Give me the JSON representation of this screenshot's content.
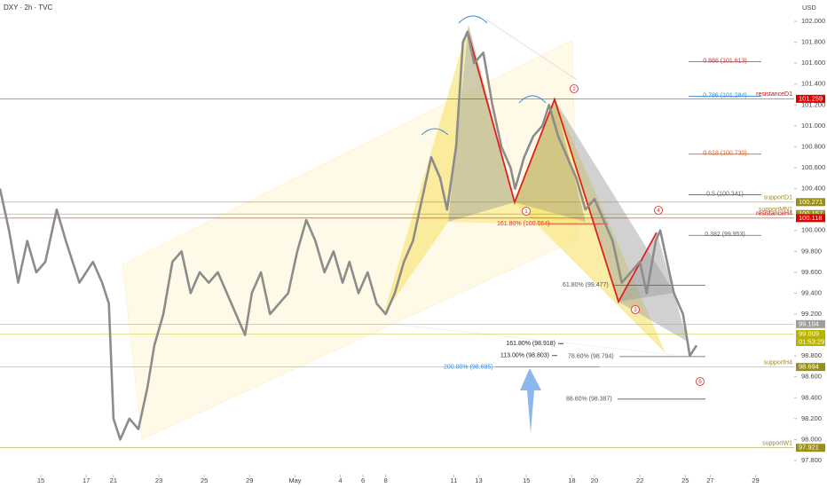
{
  "chart_data": {
    "type": "line",
    "title": "DXY · 2h · TVC",
    "y_axis_label": "USD",
    "color": "#8c8c8c",
    "xlim": [
      0,
      35
    ],
    "ylim": [
      97.664,
      102.204
    ],
    "x": [
      0,
      0.4,
      0.8,
      1.2,
      1.6,
      2.0,
      2.5,
      2.9,
      3.5,
      4.1,
      4.5,
      4.8,
      5.0,
      5.3,
      5.7,
      6.1,
      6.5,
      6.8,
      7.2,
      7.6,
      8.0,
      8.4,
      8.8,
      9.2,
      9.6,
      10.0,
      10.4,
      10.8,
      11.1,
      11.5,
      11.9,
      12.3,
      12.7,
      13.1,
      13.5,
      13.9,
      14.3,
      14.7,
      15.1,
      15.4,
      15.8,
      16.2,
      16.6,
      17.0,
      17.4,
      17.8,
      18.2,
      18.6,
      19.0,
      19.4,
      19.7,
      20.1,
      20.4,
      20.6,
      20.9,
      21.3,
      21.7,
      22.1,
      22.5,
      22.7,
      23.1,
      23.5,
      23.9,
      24.2,
      24.6,
      25.0,
      25.4,
      25.8,
      26.2,
      26.6,
      27.0,
      27.4,
      27.8,
      28.2,
      28.5,
      28.9,
      29.1,
      29.3,
      29.7,
      30.1,
      30.4,
      30.7
    ],
    "values": [
      100.4,
      100.0,
      99.5,
      99.9,
      99.6,
      99.7,
      100.2,
      99.9,
      99.5,
      99.7,
      99.5,
      99.3,
      98.2,
      98.0,
      98.2,
      98.1,
      98.5,
      98.9,
      99.2,
      99.7,
      99.8,
      99.4,
      99.6,
      99.5,
      99.6,
      99.4,
      99.2,
      99.0,
      99.4,
      99.6,
      99.2,
      99.3,
      99.4,
      99.8,
      100.1,
      99.9,
      99.6,
      99.8,
      99.5,
      99.7,
      99.4,
      99.6,
      99.3,
      99.2,
      99.4,
      99.7,
      99.9,
      100.3,
      100.7,
      100.5,
      100.2,
      100.8,
      101.8,
      101.9,
      101.6,
      101.7,
      101.2,
      100.8,
      100.6,
      100.4,
      100.7,
      100.9,
      101.0,
      101.2,
      100.9,
      100.7,
      100.5,
      100.2,
      100.3,
      100.1,
      99.9,
      99.5,
      99.6,
      99.7,
      99.4,
      99.9,
      100.0,
      99.8,
      99.4,
      99.2,
      98.8,
      98.9
    ],
    "xticks": [
      {
        "value": 1.8,
        "label": "15"
      },
      {
        "value": 3.8,
        "label": "17"
      },
      {
        "value": 5.0,
        "label": "21"
      },
      {
        "value": 7.0,
        "label": "23"
      },
      {
        "value": 9.0,
        "label": "25"
      },
      {
        "value": 11.0,
        "label": "29"
      },
      {
        "value": 13.0,
        "label": "May"
      },
      {
        "value": 15.0,
        "label": "4"
      },
      {
        "value": 16.0,
        "label": "6"
      },
      {
        "value": 17.0,
        "label": "8"
      },
      {
        "value": 20.0,
        "label": "11"
      },
      {
        "value": 21.1,
        "label": "13"
      },
      {
        "value": 23.2,
        "label": "15"
      },
      {
        "value": 25.2,
        "label": "18"
      },
      {
        "value": 26.2,
        "label": "20"
      },
      {
        "value": 28.2,
        "label": "22"
      },
      {
        "value": 30.2,
        "label": "25"
      },
      {
        "value": 31.3,
        "label": "27"
      },
      {
        "value": 33.3,
        "label": "29"
      }
    ],
    "yticks": [
      {
        "value": 102.0,
        "label": "102.000"
      },
      {
        "value": 101.8,
        "label": "101.800"
      },
      {
        "value": 101.6,
        "label": "101.600"
      },
      {
        "value": 101.4,
        "label": "101.400"
      },
      {
        "value": 101.2,
        "label": "101.200"
      },
      {
        "value": 101.0,
        "label": "101.000"
      },
      {
        "value": 100.8,
        "label": "100.800"
      },
      {
        "value": 100.6,
        "label": "100.600"
      },
      {
        "value": 100.4,
        "label": "100.400"
      },
      {
        "value": 100.0,
        "label": "100.000"
      },
      {
        "value": 99.8,
        "label": "99.800"
      },
      {
        "value": 99.6,
        "label": "99.600"
      },
      {
        "value": 99.4,
        "label": "99.400"
      },
      {
        "value": 99.2,
        "label": "99.200"
      },
      {
        "value": 98.8,
        "label": "98.800"
      },
      {
        "value": 98.6,
        "label": "98.600"
      },
      {
        "value": 98.4,
        "label": "98.400"
      },
      {
        "value": 98.2,
        "label": "98.200"
      },
      {
        "value": 98.0,
        "label": "98.000"
      },
      {
        "value": 97.8,
        "label": "97.800"
      }
    ],
    "levels": [
      {
        "name": "resistanceD1",
        "value": 101.259,
        "color": "#e00000"
      },
      {
        "name": "supportD1",
        "value": 100.271,
        "color": "#9a8f1a"
      },
      {
        "name": "supportMN1",
        "value": 100.157,
        "color": "#9a8f1a"
      },
      {
        "name": "resistanceH4",
        "value": 100.118,
        "color": "#e00000"
      },
      {
        "value": 99.104,
        "color": "#9e9e9e"
      },
      {
        "value": 99.009,
        "color": "#b8b300",
        "countdown": "01:53:29"
      },
      {
        "name": "supportH4",
        "value": 98.694,
        "color": "#9a8f1a"
      },
      {
        "name": "supportW1",
        "value": 97.921,
        "color": "#9a8f1a"
      }
    ],
    "fib_labels": [
      {
        "text": "0.886 (101.613)",
        "value": 101.613,
        "color": "#e03030"
      },
      {
        "text": "0.786 (101.284)",
        "value": 101.284,
        "color": "#3a8ad8"
      },
      {
        "text": "0.618 (100.730)",
        "value": 100.73,
        "color": "#e06020"
      },
      {
        "text": "0.5 (100.341)",
        "value": 100.341,
        "color": "#666666"
      },
      {
        "text": "0.382 (99.953)",
        "value": 99.953,
        "color": "#666666"
      },
      {
        "text": "161.80% (100.064)",
        "value": 100.064,
        "color": "#e03030"
      },
      {
        "text": "61.80% (99.477)",
        "value": 99.477,
        "color": "#555555"
      },
      {
        "text": "161.80% (98.918)",
        "value": 98.918,
        "color": "#222222"
      },
      {
        "text": "113.00% (98.803)",
        "value": 98.803,
        "color": "#222222"
      },
      {
        "text": "78.60% (98.794)",
        "value": 98.794,
        "color": "#555555"
      },
      {
        "text": "200.00% (98.695)",
        "value": 98.695,
        "color": "#3a8ad8"
      },
      {
        "text": "88.60% (98.387)",
        "value": 98.387,
        "color": "#555555"
      }
    ],
    "points": [
      "1",
      "2",
      "3",
      "4",
      "5"
    ]
  }
}
